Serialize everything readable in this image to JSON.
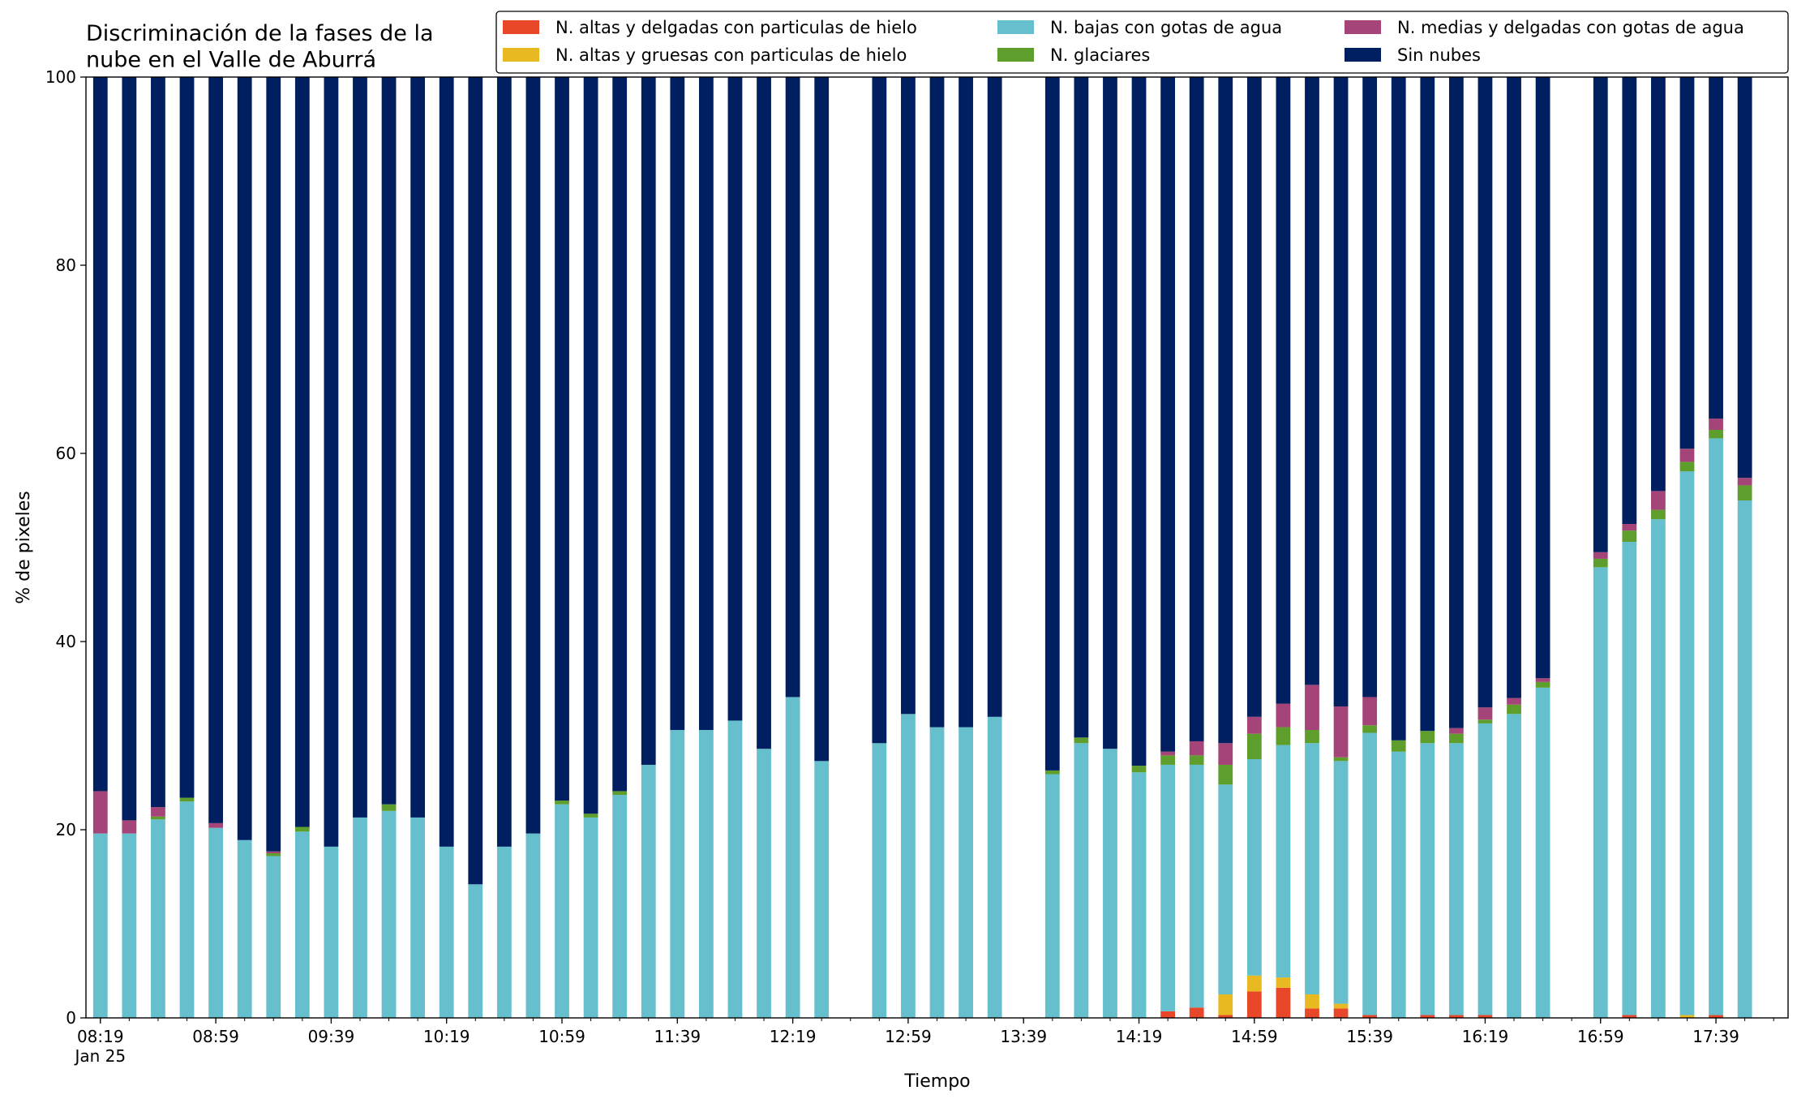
{
  "chart_data": {
    "type": "stacked_bar",
    "title": "Discriminación de la fases de la\nnube en el Valle de Aburrá",
    "xlabel": "Tiempo",
    "ylabel": "% de pixeles",
    "x": [
      "08:19",
      "08:29",
      "08:39",
      "08:49",
      "08:59",
      "09:09",
      "09:19",
      "09:29",
      "09:39",
      "09:49",
      "09:59",
      "10:09",
      "10:19",
      "10:29",
      "10:39",
      "10:49",
      "10:59",
      "11:09",
      "11:19",
      "11:29",
      "11:39",
      "11:49",
      "11:59",
      "12:09",
      "12:19",
      "12:29",
      "12:49",
      "12:59",
      "13:09",
      "13:19",
      "13:29",
      "13:49",
      "13:59",
      "14:09",
      "14:19",
      "14:29",
      "14:39",
      "14:49",
      "14:59",
      "15:09",
      "15:19",
      "15:29",
      "15:39",
      "15:49",
      "15:59",
      "16:09",
      "16:19",
      "16:29",
      "16:39",
      "16:59",
      "17:09",
      "17:19",
      "17:29",
      "17:39",
      "17:49"
    ],
    "xlim": [
      "08:14",
      "18:04"
    ],
    "xticks": [
      "08:19",
      "08:59",
      "09:39",
      "10:19",
      "10:59",
      "11:39",
      "12:19",
      "12:59",
      "13:39",
      "14:19",
      "14:59",
      "15:39",
      "16:19",
      "16:59",
      "17:39"
    ],
    "xtick_sublabel": "Jan 25",
    "ylim": [
      0,
      100
    ],
    "yticks": [
      0,
      20,
      40,
      60,
      80,
      100
    ],
    "legend_position": "top",
    "series": [
      {
        "name": "N. altas y delgadas con particulas de hielo",
        "color": "#e8472a",
        "values": [
          0,
          0,
          0,
          0,
          0,
          0,
          0,
          0,
          0,
          0,
          0,
          0,
          0,
          0,
          0,
          0,
          0,
          0,
          0,
          0,
          0,
          0,
          0,
          0,
          0,
          0,
          0,
          0,
          0,
          0,
          0,
          0,
          0,
          0,
          0,
          0.7,
          1.1,
          0.3,
          2.8,
          3.2,
          1.0,
          1.0,
          0.3,
          0,
          0.3,
          0.3,
          0.3,
          0,
          0,
          0,
          0.3,
          0,
          0,
          0.3,
          0
        ]
      },
      {
        "name": "N. altas y gruesas con particulas de hielo",
        "color": "#e8b920",
        "values": [
          0,
          0,
          0,
          0,
          0,
          0,
          0,
          0,
          0,
          0,
          0,
          0,
          0,
          0,
          0,
          0,
          0,
          0,
          0,
          0,
          0,
          0,
          0,
          0,
          0,
          0,
          0,
          0,
          0,
          0,
          0,
          0,
          0,
          0,
          0,
          0,
          0,
          2.2,
          1.7,
          1.1,
          1.5,
          0.5,
          0,
          0,
          0,
          0,
          0,
          0,
          0,
          0,
          0,
          0,
          0.3,
          0,
          0
        ]
      },
      {
        "name": "N. bajas con gotas de agua",
        "color": "#66bfcc",
        "values": [
          19.6,
          19.6,
          21.1,
          23.0,
          20.2,
          18.9,
          17.2,
          19.8,
          18.2,
          21.3,
          22.0,
          21.3,
          18.2,
          14.2,
          18.2,
          19.6,
          22.7,
          21.3,
          23.7,
          26.9,
          30.6,
          30.6,
          31.6,
          28.6,
          34.1,
          27.3,
          29.2,
          32.3,
          30.9,
          30.9,
          32.0,
          25.9,
          29.2,
          28.6,
          26.1,
          26.2,
          25.8,
          22.3,
          23.0,
          24.7,
          26.7,
          25.8,
          30.0,
          28.3,
          28.9,
          28.9,
          31.0,
          32.3,
          35.1,
          47.9,
          50.3,
          53.0,
          57.8,
          61.3,
          55.0
        ]
      },
      {
        "name": "N. glaciares",
        "color": "#5e9e2d",
        "values": [
          0,
          0,
          0.3,
          0.4,
          0,
          0,
          0.3,
          0.5,
          0,
          0,
          0.7,
          0,
          0,
          0,
          0,
          0,
          0.4,
          0.4,
          0.4,
          0,
          0,
          0,
          0,
          0,
          0,
          0,
          0,
          0,
          0,
          0,
          0,
          0.4,
          0.6,
          0,
          0.7,
          1.0,
          1.0,
          2.1,
          2.7,
          1.9,
          1.4,
          0.4,
          0.8,
          1.2,
          1.3,
          1.0,
          0.4,
          1.0,
          0.6,
          0.9,
          1.2,
          1.0,
          1.0,
          0.9,
          1.6
        ]
      },
      {
        "name": "N. medias y delgadas con gotas de agua",
        "color": "#a44478",
        "values": [
          4.5,
          1.4,
          1.0,
          0,
          0.5,
          0,
          0.2,
          0,
          0,
          0,
          0,
          0,
          0,
          0,
          0,
          0,
          0,
          0,
          0,
          0,
          0,
          0,
          0,
          0,
          0,
          0,
          0,
          0,
          0,
          0,
          0,
          0,
          0,
          0,
          0,
          0.4,
          1.5,
          2.3,
          1.8,
          2.5,
          4.8,
          5.4,
          3.0,
          0,
          0,
          0.6,
          1.3,
          0.7,
          0.4,
          0.7,
          0.7,
          2.0,
          1.4,
          1.2,
          0.8
        ]
      },
      {
        "name": "Sin nubes",
        "color": "#001f60",
        "values": [
          75.9,
          79.0,
          77.6,
          76.6,
          79.3,
          81.1,
          82.3,
          79.7,
          81.8,
          78.7,
          77.3,
          78.7,
          81.8,
          85.8,
          81.8,
          80.4,
          76.9,
          78.3,
          75.9,
          73.1,
          69.4,
          69.4,
          68.4,
          71.4,
          65.9,
          72.7,
          70.8,
          67.7,
          69.1,
          69.1,
          68.0,
          73.7,
          70.2,
          71.4,
          73.2,
          71.7,
          70.6,
          70.8,
          68.0,
          66.6,
          64.6,
          66.9,
          65.9,
          70.5,
          69.5,
          69.2,
          67.0,
          66.0,
          63.9,
          50.5,
          47.5,
          44.0,
          39.5,
          36.3,
          42.6
        ]
      }
    ]
  }
}
